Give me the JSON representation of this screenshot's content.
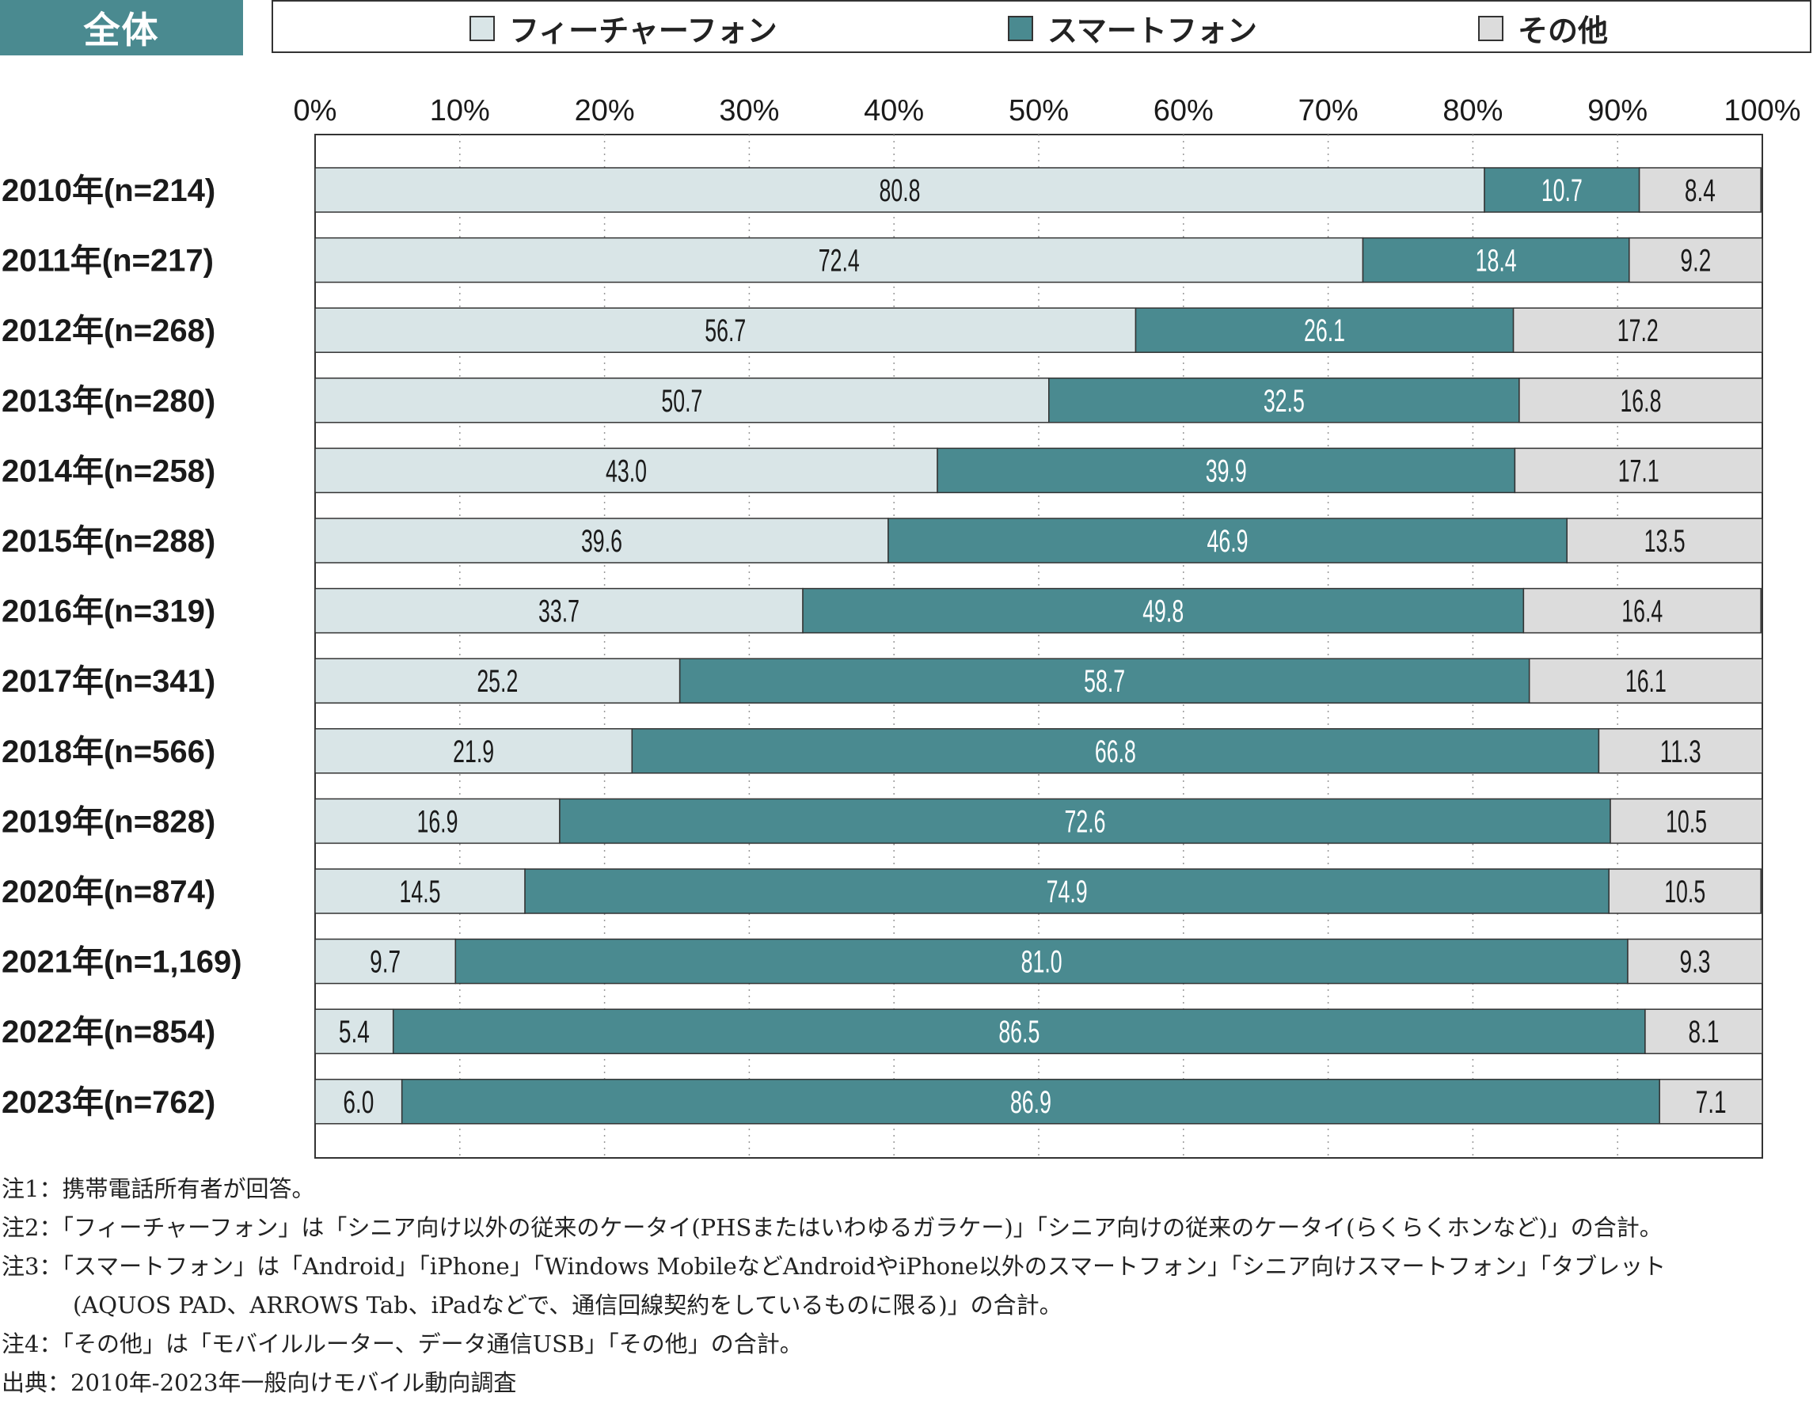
{
  "header": {
    "tag": "全体"
  },
  "legend": [
    {
      "label": "フィーチャーフォン",
      "color": "#d9e5e7"
    },
    {
      "label": "スマートフォン",
      "color": "#4a8a90"
    },
    {
      "label": "その他",
      "color": "#dcdcdc"
    }
  ],
  "chart_data": {
    "type": "bar",
    "orientation": "horizontal",
    "stacked": true,
    "percent": true,
    "xlim": [
      0,
      100
    ],
    "xticks": [
      "0%",
      "10%",
      "20%",
      "30%",
      "40%",
      "50%",
      "60%",
      "70%",
      "80%",
      "90%",
      "100%"
    ],
    "grid": "vertical dotted",
    "categories": [
      "2010年(n=214)",
      "2011年(n=217)",
      "2012年(n=268)",
      "2013年(n=280)",
      "2014年(n=258)",
      "2015年(n=288)",
      "2016年(n=319)",
      "2017年(n=341)",
      "2018年(n=566)",
      "2019年(n=828)",
      "2020年(n=874)",
      "2021年(n=1,169)",
      "2022年(n=854)",
      "2023年(n=762)"
    ],
    "series": [
      {
        "name": "フィーチャーフォン",
        "color": "#d9e5e7",
        "label_color": "#1a1a1a",
        "values": [
          80.8,
          72.4,
          56.7,
          50.7,
          43.0,
          39.6,
          33.7,
          25.2,
          21.9,
          16.9,
          14.5,
          9.7,
          5.4,
          6.0
        ],
        "labels": [
          "80.8",
          "72.4",
          "56.7",
          "50.7",
          "43.0",
          "39.6",
          "33.7",
          "25.2",
          "21.9",
          "16.9",
          "14.5",
          "9.7",
          "5.4",
          "6.0"
        ]
      },
      {
        "name": "スマートフォン",
        "color": "#4a8a90",
        "label_color": "#ffffff",
        "values": [
          10.7,
          18.4,
          26.1,
          32.5,
          39.9,
          46.9,
          49.8,
          58.7,
          66.8,
          72.6,
          74.9,
          81.0,
          86.5,
          86.9
        ],
        "labels": [
          "10.7",
          "18.4",
          "26.1",
          "32.5",
          "39.9",
          "46.9",
          "49.8",
          "58.7",
          "66.8",
          "72.6",
          "74.9",
          "81.0",
          "86.5",
          "86.9"
        ]
      },
      {
        "name": "その他",
        "color": "#dcdcdc",
        "label_color": "#1a1a1a",
        "values": [
          8.4,
          9.2,
          17.2,
          16.8,
          17.1,
          13.5,
          16.4,
          16.1,
          11.3,
          10.5,
          10.5,
          9.3,
          8.1,
          7.1
        ],
        "labels": [
          "8.4",
          "9.2",
          "17.2",
          "16.8",
          "17.1",
          "13.5",
          "16.4",
          "16.1",
          "11.3",
          "10.5",
          "10.5",
          "9.3",
          "8.1",
          "7.1"
        ]
      }
    ]
  },
  "notes": {
    "n1": "注1：携帯電話所有者が回答。",
    "n2": "注2：「フィーチャーフォン」は「シニア向け以外の従来のケータイ(PHSまたはいわゆるガラケー)」「シニア向けの従来のケータイ(らくらくホンなど)」の合計。",
    "n3a": "注3：「スマートフォン」は「Android」「iPhone」「Windows MobileなどAndroidやiPhone以外のスマートフォン」「シニア向けスマートフォン」「タブレット",
    "n3b": "(AQUOS PAD、ARROWS Tab、iPadなどで、通信回線契約をしているものに限る)」の合計。",
    "n4": "注4：「その他」は「モバイルルーター、データ通信USB」「その他」の合計。",
    "source": "出典：2010年-2023年一般向けモバイル動向調査"
  }
}
